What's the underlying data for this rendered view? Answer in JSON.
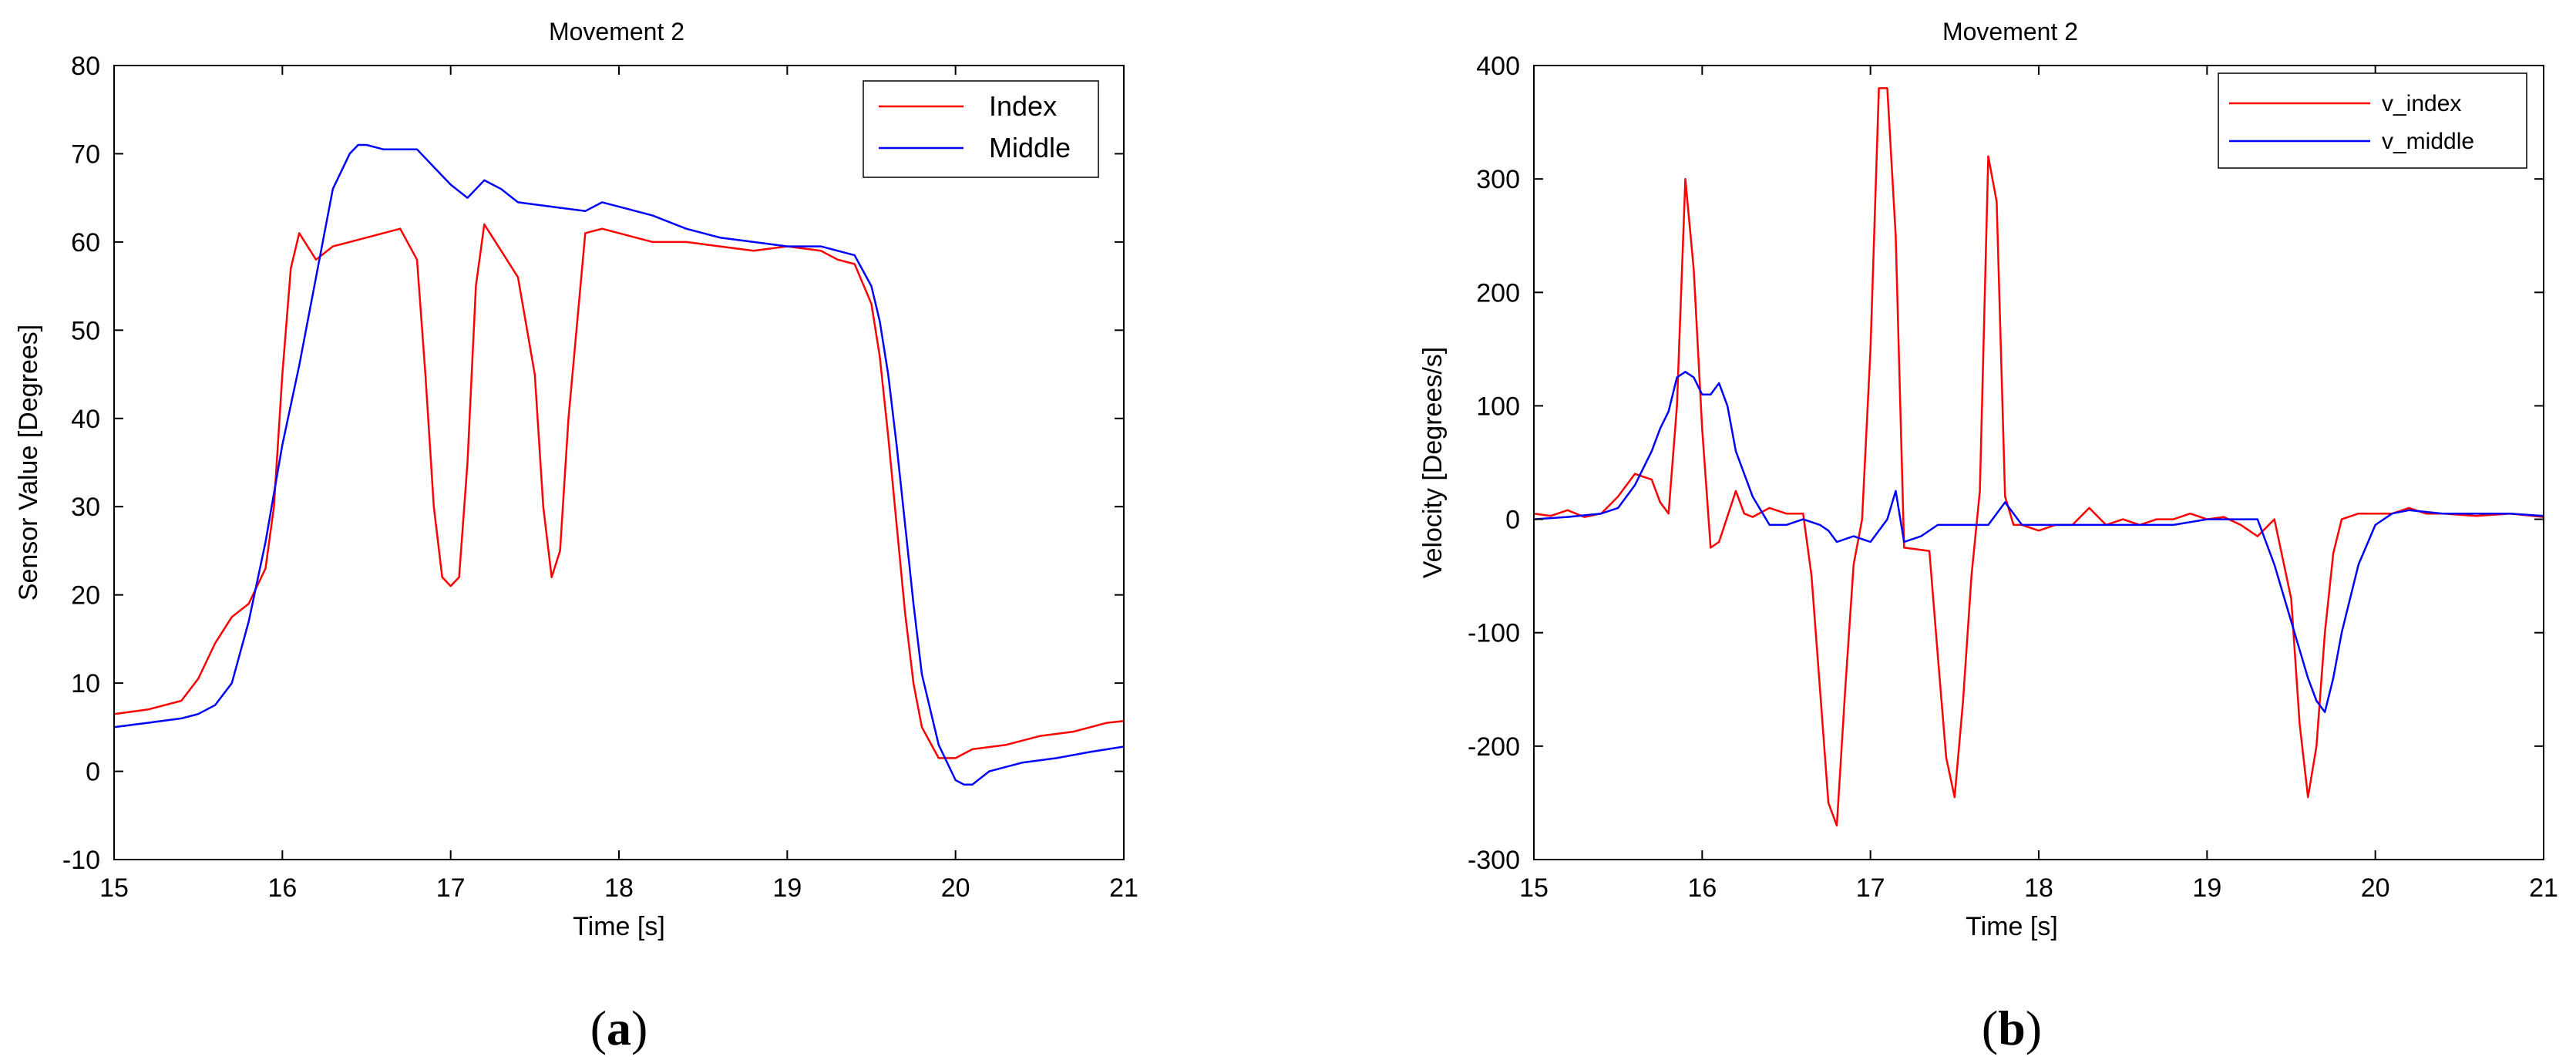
{
  "chart_data": [
    {
      "type": "line",
      "panel_label": "a",
      "title": "Movement 2",
      "xlabel": "Time [s]",
      "ylabel": "Sensor Value [Degrees]",
      "xlim": [
        15,
        21
      ],
      "ylim": [
        -10,
        80
      ],
      "xticks": [
        15,
        16,
        17,
        18,
        19,
        20,
        21
      ],
      "yticks": [
        -10,
        0,
        10,
        20,
        30,
        40,
        50,
        60,
        70,
        80
      ],
      "grid": false,
      "legend_position": "top-right",
      "series": [
        {
          "name": "Index",
          "color": "#ff0000",
          "x": [
            15.0,
            15.2,
            15.4,
            15.5,
            15.6,
            15.7,
            15.8,
            15.9,
            15.95,
            16.0,
            16.05,
            16.1,
            16.2,
            16.3,
            16.4,
            16.5,
            16.6,
            16.7,
            16.8,
            16.85,
            16.9,
            16.95,
            17.0,
            17.05,
            17.1,
            17.15,
            17.2,
            17.3,
            17.4,
            17.5,
            17.55,
            17.6,
            17.65,
            17.7,
            17.8,
            17.9,
            18.0,
            18.2,
            18.4,
            18.6,
            18.8,
            19.0,
            19.2,
            19.3,
            19.4,
            19.5,
            19.55,
            19.6,
            19.65,
            19.7,
            19.75,
            19.8,
            19.9,
            20.0,
            20.1,
            20.3,
            20.5,
            20.7,
            20.9,
            21.0
          ],
          "y": [
            6.5,
            7.0,
            8.0,
            10.5,
            14.5,
            17.5,
            19.0,
            23.0,
            30.0,
            45.0,
            57.0,
            61.0,
            58.0,
            59.5,
            60.0,
            60.5,
            61.0,
            61.5,
            58.0,
            45.0,
            30.0,
            22.0,
            21.0,
            22.0,
            35.0,
            55.0,
            62.0,
            59.0,
            56.0,
            45.0,
            30.0,
            22.0,
            25.0,
            40.0,
            61.0,
            61.5,
            61.0,
            60.0,
            60.0,
            59.5,
            59.0,
            59.5,
            59.0,
            58.0,
            57.5,
            53.0,
            47.0,
            38.0,
            28.0,
            18.0,
            10.0,
            5.0,
            1.5,
            1.5,
            2.5,
            3.0,
            4.0,
            4.5,
            5.5,
            5.7
          ]
        },
        {
          "name": "Middle",
          "color": "#0000ff",
          "x": [
            15.0,
            15.2,
            15.4,
            15.5,
            15.6,
            15.7,
            15.8,
            15.9,
            16.0,
            16.1,
            16.2,
            16.3,
            16.4,
            16.45,
            16.5,
            16.6,
            16.7,
            16.8,
            16.9,
            17.0,
            17.1,
            17.2,
            17.3,
            17.4,
            17.6,
            17.8,
            17.9,
            18.0,
            18.2,
            18.4,
            18.6,
            18.8,
            19.0,
            19.2,
            19.3,
            19.4,
            19.5,
            19.55,
            19.6,
            19.65,
            19.7,
            19.75,
            19.8,
            19.9,
            20.0,
            20.05,
            20.1,
            20.2,
            20.4,
            20.6,
            20.8,
            21.0
          ],
          "y": [
            5.0,
            5.5,
            6.0,
            6.5,
            7.5,
            10.0,
            17.0,
            26.0,
            37.0,
            46.0,
            56.0,
            66.0,
            70.0,
            71.0,
            71.0,
            70.5,
            70.5,
            70.5,
            68.5,
            66.5,
            65.0,
            67.0,
            66.0,
            64.5,
            64.0,
            63.5,
            64.5,
            64.0,
            63.0,
            61.5,
            60.5,
            60.0,
            59.5,
            59.5,
            59.0,
            58.5,
            55.0,
            51.0,
            45.0,
            37.0,
            28.0,
            19.0,
            11.0,
            3.0,
            -1.0,
            -1.5,
            -1.5,
            0.0,
            1.0,
            1.5,
            2.2,
            2.8
          ]
        }
      ]
    },
    {
      "type": "line",
      "panel_label": "b",
      "title": "Movement 2",
      "xlabel": "Time [s]",
      "ylabel": "Velocity [Degrees/s]",
      "xlim": [
        15,
        21
      ],
      "ylim": [
        -300,
        400
      ],
      "xticks": [
        15,
        16,
        17,
        18,
        19,
        20,
        21
      ],
      "yticks": [
        -300,
        -200,
        -100,
        0,
        100,
        200,
        300,
        400
      ],
      "grid": false,
      "legend_position": "top-right",
      "series": [
        {
          "name": "v_index",
          "color": "#ff0000",
          "x": [
            15.0,
            15.1,
            15.2,
            15.3,
            15.4,
            15.5,
            15.6,
            15.7,
            15.75,
            15.8,
            15.85,
            15.9,
            15.95,
            16.0,
            16.05,
            16.1,
            16.2,
            16.25,
            16.3,
            16.4,
            16.5,
            16.6,
            16.65,
            16.7,
            16.75,
            16.8,
            16.85,
            16.9,
            16.95,
            17.0,
            17.05,
            17.1,
            17.15,
            17.2,
            17.3,
            17.35,
            17.4,
            17.45,
            17.5,
            17.55,
            17.6,
            17.65,
            17.7,
            17.75,
            17.8,
            17.85,
            17.9,
            18.0,
            18.1,
            18.2,
            18.3,
            18.4,
            18.5,
            18.6,
            18.7,
            18.8,
            18.9,
            19.0,
            19.1,
            19.2,
            19.3,
            19.4,
            19.5,
            19.55,
            19.6,
            19.65,
            19.7,
            19.75,
            19.8,
            19.9,
            20.0,
            20.1,
            20.2,
            20.3,
            20.4,
            20.6,
            20.8,
            21.0
          ],
          "y": [
            5,
            3,
            8,
            2,
            5,
            20,
            40,
            35,
            15,
            5,
            100,
            300,
            220,
            80,
            -25,
            -20,
            25,
            5,
            2,
            10,
            5,
            5,
            -50,
            -150,
            -250,
            -270,
            -150,
            -40,
            0,
            150,
            380,
            380,
            250,
            -25,
            -27,
            -28,
            -120,
            -210,
            -245,
            -160,
            -50,
            25,
            320,
            280,
            20,
            -5,
            -5,
            -10,
            -5,
            -5,
            10,
            -5,
            0,
            -5,
            0,
            0,
            5,
            0,
            2,
            -5,
            -15,
            0,
            -70,
            -180,
            -245,
            -200,
            -100,
            -30,
            0,
            5,
            5,
            5,
            10,
            5,
            5,
            3,
            5,
            2
          ]
        },
        {
          "name": "v_middle",
          "color": "#0000ff",
          "x": [
            15.0,
            15.2,
            15.4,
            15.5,
            15.6,
            15.7,
            15.75,
            15.8,
            15.85,
            15.9,
            15.95,
            16.0,
            16.05,
            16.1,
            16.15,
            16.2,
            16.3,
            16.4,
            16.5,
            16.6,
            16.7,
            16.75,
            16.8,
            16.9,
            17.0,
            17.1,
            17.15,
            17.2,
            17.3,
            17.4,
            17.5,
            17.6,
            17.7,
            17.75,
            17.8,
            17.9,
            18.0,
            18.2,
            18.4,
            18.6,
            18.8,
            19.0,
            19.2,
            19.3,
            19.4,
            19.5,
            19.55,
            19.6,
            19.65,
            19.7,
            19.75,
            19.8,
            19.9,
            20.0,
            20.1,
            20.2,
            20.4,
            20.6,
            20.8,
            21.0
          ],
          "y": [
            0,
            2,
            5,
            10,
            30,
            60,
            80,
            95,
            125,
            130,
            125,
            110,
            110,
            120,
            100,
            60,
            20,
            -5,
            -5,
            0,
            -5,
            -10,
            -20,
            -15,
            -20,
            0,
            25,
            -20,
            -15,
            -5,
            -5,
            -5,
            -5,
            5,
            15,
            -5,
            -5,
            -5,
            -5,
            -5,
            -5,
            0,
            0,
            0,
            -40,
            -90,
            -115,
            -140,
            -160,
            -170,
            -140,
            -100,
            -40,
            -5,
            5,
            8,
            5,
            5,
            5,
            3
          ]
        }
      ]
    }
  ]
}
